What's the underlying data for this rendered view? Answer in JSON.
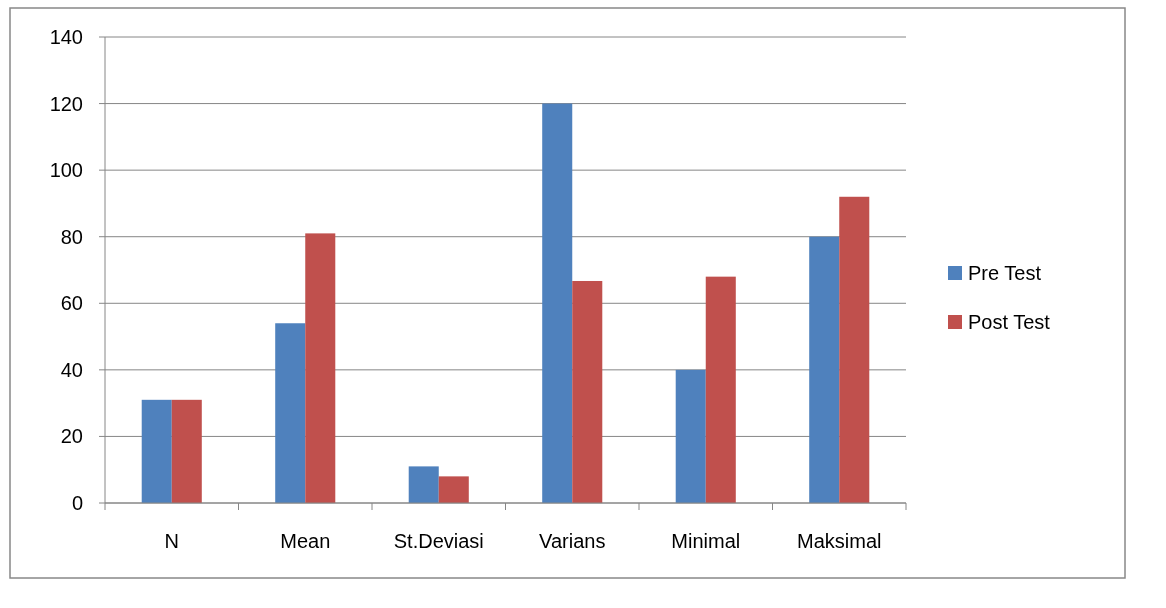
{
  "chart_data": {
    "type": "bar",
    "categories": [
      "N",
      "Mean",
      "St.Deviasi",
      "Varians",
      "Minimal",
      "Maksimal"
    ],
    "series": [
      {
        "name": "Pre Test",
        "color": "#4f81bd",
        "values": [
          31,
          54,
          11,
          120,
          40,
          80
        ]
      },
      {
        "name": "Post Test",
        "color": "#c0504d",
        "values": [
          31,
          81,
          8,
          66.7,
          68,
          92
        ]
      }
    ],
    "ylim": [
      0,
      140
    ],
    "yticks": [
      0,
      20,
      40,
      60,
      80,
      100,
      120,
      140
    ],
    "grid": "y",
    "legend": "right"
  }
}
